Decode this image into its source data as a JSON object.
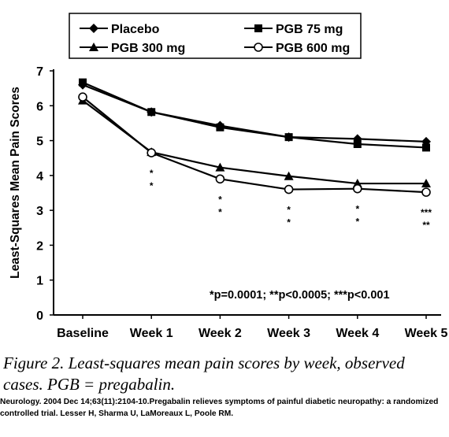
{
  "chart_data": {
    "type": "line",
    "categories": [
      "Baseline",
      "Week 1",
      "Week 2",
      "Week 3",
      "Week 4",
      "Week 5"
    ],
    "ylabel": "Least-Squares Mean Pain Scores",
    "xlabel": "",
    "ylim": [
      0,
      7
    ],
    "yticks": [
      "0",
      "1",
      "2",
      "3",
      "4",
      "5",
      "6",
      "7"
    ],
    "legend_position": "top",
    "grid": false,
    "series": [
      {
        "name": "Placebo",
        "marker": "diamond",
        "values": [
          6.6,
          5.82,
          5.43,
          5.1,
          5.05,
          4.97
        ]
      },
      {
        "name": "PGB 75 mg",
        "marker": "square",
        "values": [
          6.67,
          5.82,
          5.38,
          5.1,
          4.9,
          4.8
        ]
      },
      {
        "name": "PGB 300 mg",
        "marker": "triangle",
        "values": [
          6.15,
          4.67,
          4.23,
          3.98,
          3.77,
          3.77
        ]
      },
      {
        "name": "PGB 600 mg",
        "marker": "circle-open",
        "values": [
          6.25,
          4.65,
          3.9,
          3.6,
          3.62,
          3.52
        ]
      }
    ],
    "significance_marks": [
      {
        "category": "Week 1",
        "marks": [
          "*",
          "*"
        ]
      },
      {
        "category": "Week 2",
        "marks": [
          "*",
          "*"
        ]
      },
      {
        "category": "Week 3",
        "marks": [
          "*",
          "*"
        ]
      },
      {
        "category": "Week 4",
        "marks": [
          "*",
          "*"
        ]
      },
      {
        "category": "Week 5",
        "marks": [
          "***",
          "**"
        ]
      }
    ],
    "significance_note": "*p=0.0001; **p<0.0005; ***p<0.001"
  },
  "caption": "Figure 2.   Least-squares mean pain scores by week, observed cases. PGB = pregabalin.",
  "citation": "Neurology. 2004 Dec 14;63(11):2104-10.Pregabalin relieves symptoms of painful diabetic neuropathy: a randomized controlled trial. Lesser H, Sharma U, LaMoreaux L, Poole RM."
}
